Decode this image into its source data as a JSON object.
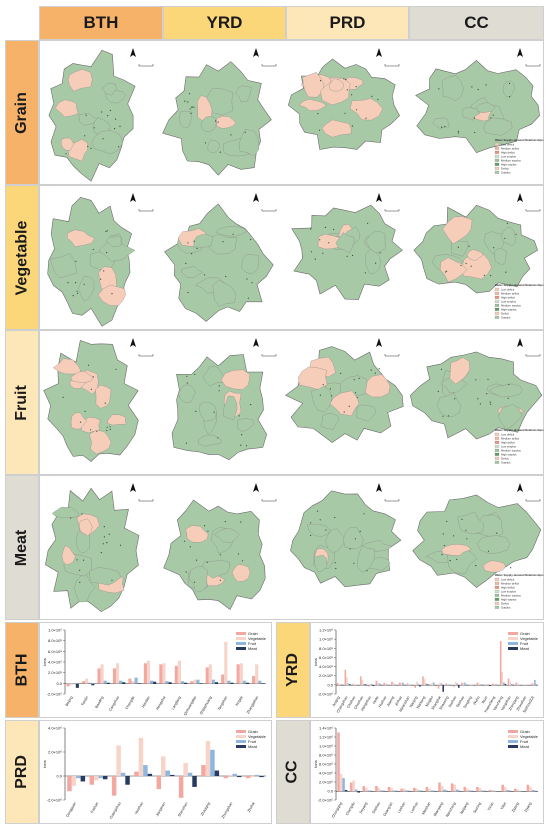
{
  "columns": [
    "BTH",
    "YRD",
    "PRD",
    "CC"
  ],
  "rows": [
    "Grain",
    "Vegetable",
    "Fruit",
    "Meat"
  ],
  "colors": {
    "bth_header": "#f7b26a",
    "yrd_header": "#fbd77a",
    "prd_header": "#fde6b8",
    "cc_header": "#dedcd3",
    "surplus": "#a8c9a6",
    "deficit": "#f6cdb9",
    "grain": "#f2a7a0",
    "vegetable": "#f7d3c8",
    "fruit": "#8eb6df",
    "meat": "#283a5e"
  },
  "map_legend": {
    "title": "Water Supply-demand Relationships",
    "items": [
      "Low deficit",
      "Medium deficit",
      "High deficit",
      "Low surplus",
      "Medium surplus",
      "High surplus",
      "Deficit",
      "Surplus"
    ]
  },
  "charts": [
    {
      "region": "BTH",
      "ylabel": "tons",
      "y_ticks": [
        "1.0×10⁶",
        "8.0×10⁵",
        "6.0×10⁵",
        "4.0×10⁵",
        "2.0×10⁵",
        "0.0",
        "-2.0×10⁵"
      ],
      "legend": [
        "Grain",
        "Vegetable",
        "Fruit",
        "Meat"
      ],
      "chart_data": {
        "type": "bar",
        "categories": [
          "Beijing",
          "Tianjin",
          "Baoding",
          "Cangzhou",
          "Chengde",
          "Handan",
          "Hengshui",
          "Langfang",
          "Qinhuangdao",
          "Shijiazhuang",
          "Tangshan",
          "Xingtai",
          "Zhangjiakou"
        ],
        "ylim": [
          -200000,
          1050000
        ],
        "series": [
          {
            "name": "Grain",
            "values": [
              -50000,
              50000,
              300000,
              300000,
              100000,
              400000,
              380000,
              350000,
              50000,
              320000,
              180000,
              380000,
              150000
            ]
          },
          {
            "name": "Vegetable",
            "values": [
              -20000,
              100000,
              380000,
              400000,
              50000,
              450000,
              400000,
              450000,
              80000,
              380000,
              820000,
              400000,
              380000
            ]
          },
          {
            "name": "Fruit",
            "values": [
              -10000,
              20000,
              60000,
              60000,
              120000,
              60000,
              50000,
              50000,
              80000,
              80000,
              60000,
              60000,
              60000
            ]
          },
          {
            "name": "Meat",
            "values": [
              -80000,
              -30000,
              20000,
              30000,
              10000,
              40000,
              30000,
              20000,
              10000,
              30000,
              20000,
              20000,
              10000
            ]
          }
        ]
      }
    },
    {
      "region": "YRD",
      "ylabel": "tons",
      "y_ticks": [
        "1.2×10⁶",
        "1.0×10⁶",
        "8.0×10⁵",
        "6.0×10⁵",
        "4.0×10⁵",
        "2.0×10⁵",
        "0.0",
        "-2.0×10⁵"
      ],
      "legend": [
        "Grain",
        "Vegetable",
        "Fruit",
        "Meat"
      ],
      "chart_data": {
        "type": "bar",
        "categories": [
          "Anqing",
          "Changzhou",
          "Chizhou",
          "Chuzhou",
          "Hangzhou",
          "Hefei",
          "Huzhou",
          "Jiaxing",
          "Jinhua",
          "Ma'anshan",
          "Nanjing",
          "Nantong",
          "Ningbo",
          "Shanghai",
          "Shaoxing",
          "Suzhou",
          "Taizhou",
          "Tongling",
          "Wuhu",
          "Wuxi",
          "Xuancheng",
          "Yancheng",
          "Yangzhou",
          "Zhenjiang",
          "Zhoushan",
          "Taizhou(ZJ)"
        ],
        "ylim": [
          -200000,
          1250000
        ],
        "series": [
          {
            "name": "Grain",
            "values": [
              50000,
              350000,
              30000,
              200000,
              -30000,
              100000,
              50000,
              80000,
              60000,
              40000,
              -60000,
              200000,
              20000,
              -80000,
              40000,
              -40000,
              60000,
              20000,
              60000,
              -20000,
              40000,
              1000000,
              150000,
              60000,
              10000,
              40000
            ]
          },
          {
            "name": "Vegetable",
            "values": [
              30000,
              180000,
              20000,
              120000,
              20000,
              60000,
              40000,
              60000,
              50000,
              30000,
              80000,
              150000,
              60000,
              60000,
              30000,
              80000,
              50000,
              10000,
              40000,
              30000,
              30000,
              300000,
              80000,
              40000,
              10000,
              50000
            ]
          },
          {
            "name": "Fruit",
            "values": [
              20000,
              40000,
              10000,
              30000,
              30000,
              40000,
              20000,
              20000,
              60000,
              10000,
              30000,
              40000,
              60000,
              40000,
              20000,
              40000,
              60000,
              10000,
              20000,
              20000,
              20000,
              60000,
              30000,
              10000,
              10000,
              120000
            ]
          },
          {
            "name": "Meat",
            "values": [
              10000,
              20000,
              5000,
              20000,
              -20000,
              10000,
              5000,
              5000,
              10000,
              5000,
              -30000,
              20000,
              -10000,
              -150000,
              5000,
              -60000,
              10000,
              5000,
              10000,
              -20000,
              5000,
              30000,
              10000,
              5000,
              2000,
              10000
            ]
          }
        ]
      }
    },
    {
      "region": "PRD",
      "ylabel": "tons",
      "y_ticks": [
        "4.0×10⁶",
        "2.0×10⁶",
        "0.0",
        "-2.0×10⁶"
      ],
      "legend": [
        "Grain",
        "Vegetable",
        "Fruit",
        "Meat"
      ],
      "chart_data": {
        "type": "bar",
        "categories": [
          "Dongguan",
          "Foshan",
          "Guangzhou",
          "Huizhou",
          "Jiangmen",
          "Shenzhen",
          "Zhaoqing",
          "Zhongshan",
          "Zhuhai"
        ],
        "ylim": [
          -2200000,
          4400000
        ],
        "series": [
          {
            "name": "Grain",
            "values": [
              -1400000,
              -800000,
              -1800000,
              400000,
              -1200000,
              -2000000,
              1000000,
              -200000,
              -200000
            ]
          },
          {
            "name": "Vegetable",
            "values": [
              -900000,
              -400000,
              2800000,
              3500000,
              1800000,
              1200000,
              3200000,
              100000,
              -100000
            ]
          },
          {
            "name": "Fruit",
            "values": [
              -200000,
              -200000,
              300000,
              1000000,
              500000,
              300000,
              2400000,
              200000,
              100000
            ]
          },
          {
            "name": "Meat",
            "values": [
              -500000,
              -300000,
              -800000,
              200000,
              100000,
              -1000000,
              500000,
              -100000,
              -100000
            ]
          }
        ]
      }
    },
    {
      "region": "CC",
      "ylabel": "tons",
      "y_ticks": [
        "1.4×10⁶",
        "1.2×10⁶",
        "1.0×10⁶",
        "8.0×10⁵",
        "6.0×10⁵",
        "4.0×10⁵",
        "2.0×10⁵",
        "0.0",
        "-2.0×10⁵"
      ],
      "legend": [
        "Grain",
        "Vegetable",
        "Fruit",
        "Meat"
      ],
      "chart_data": {
        "type": "bar",
        "categories": [
          "Chongqing",
          "Chengdu",
          "Deyang",
          "Dazhou",
          "Guang'an",
          "Leshan",
          "Luzhou",
          "Meishan",
          "Mianyang",
          "Nanchong",
          "Neijiang",
          "Suining",
          "Ya'an",
          "Yibin",
          "Zigong",
          "Ziyang"
        ],
        "ylim": [
          -200000,
          1450000
        ],
        "series": [
          {
            "name": "Grain",
            "values": [
              1350000,
              200000,
              120000,
              120000,
              100000,
              60000,
              80000,
              100000,
              200000,
              180000,
              100000,
              100000,
              30000,
              150000,
              60000,
              150000
            ]
          },
          {
            "name": "Vegetable",
            "values": [
              400000,
              250000,
              80000,
              80000,
              80000,
              60000,
              60000,
              60000,
              120000,
              150000,
              60000,
              80000,
              30000,
              100000,
              40000,
              100000
            ]
          },
          {
            "name": "Fruit",
            "values": [
              300000,
              40000,
              20000,
              20000,
              20000,
              20000,
              20000,
              20000,
              40000,
              40000,
              20000,
              20000,
              10000,
              30000,
              10000,
              30000
            ]
          },
          {
            "name": "Meat",
            "values": [
              30000,
              -30000,
              10000,
              10000,
              10000,
              10000,
              10000,
              10000,
              10000,
              10000,
              10000,
              10000,
              5000,
              10000,
              5000,
              10000
            ]
          }
        ]
      }
    }
  ]
}
